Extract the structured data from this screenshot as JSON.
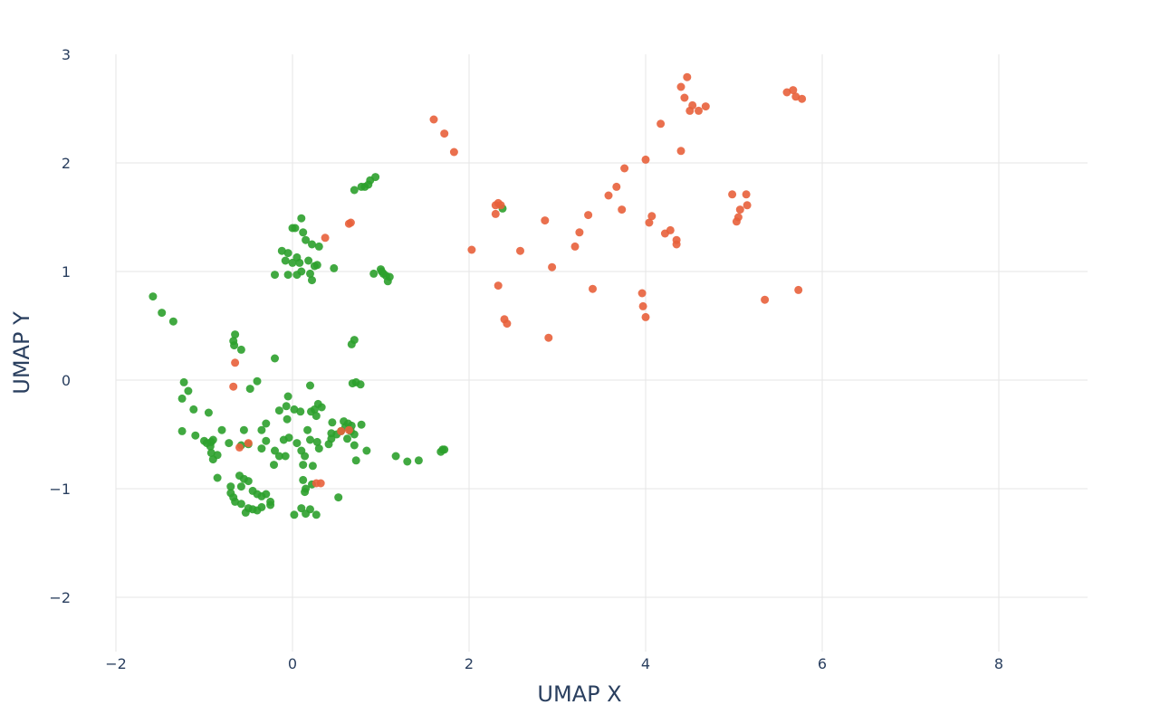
{
  "chart_data": {
    "type": "scatter",
    "title": "",
    "xlabel": "UMAP X",
    "ylabel": "UMAP Y",
    "xlim": [
      -2.4,
      9.0
    ],
    "ylim": [
      -2.5,
      3.0
    ],
    "x_ticks": [
      -2,
      0,
      2,
      4,
      6,
      8
    ],
    "y_ticks": [
      -2,
      -1,
      0,
      1,
      2,
      3
    ],
    "x_tick_labels": [
      "−2",
      "0",
      "2",
      "4",
      "6",
      "8"
    ],
    "y_tick_labels": [
      "−2",
      "−1",
      "0",
      "1",
      "2",
      "3"
    ],
    "grid": true,
    "legend": "none",
    "series": [
      {
        "color": "#2ca02c",
        "points": [
          [
            -1.58,
            0.77
          ],
          [
            -1.48,
            0.62
          ],
          [
            -1.35,
            0.54
          ],
          [
            -0.65,
            0.42
          ],
          [
            -0.67,
            0.36
          ],
          [
            -0.66,
            0.32
          ],
          [
            -0.58,
            0.28
          ],
          [
            -0.2,
            0.2
          ],
          [
            0.7,
            0.37
          ],
          [
            0.67,
            0.33
          ],
          [
            -1.23,
            -0.02
          ],
          [
            -1.25,
            -0.17
          ],
          [
            -1.18,
            -0.1
          ],
          [
            -1.12,
            -0.27
          ],
          [
            -0.95,
            -0.3
          ],
          [
            -0.4,
            -0.01
          ],
          [
            -0.48,
            -0.08
          ],
          [
            0.68,
            -0.03
          ],
          [
            0.72,
            -0.02
          ],
          [
            0.77,
            -0.04
          ],
          [
            0.2,
            -0.05
          ],
          [
            -0.05,
            -0.15
          ],
          [
            -0.07,
            -0.24
          ],
          [
            0.02,
            -0.27
          ],
          [
            0.09,
            -0.29
          ],
          [
            0.21,
            -0.29
          ],
          [
            0.25,
            -0.27
          ],
          [
            0.27,
            -0.33
          ],
          [
            0.29,
            -0.22
          ],
          [
            0.33,
            -0.25
          ],
          [
            -0.15,
            -0.28
          ],
          [
            -0.3,
            -0.4
          ],
          [
            -0.06,
            -0.36
          ],
          [
            -1.25,
            -0.47
          ],
          [
            -1.1,
            -0.51
          ],
          [
            -0.8,
            -0.46
          ],
          [
            -0.55,
            -0.46
          ],
          [
            -0.35,
            -0.46
          ],
          [
            0.17,
            -0.46
          ],
          [
            0.45,
            -0.39
          ],
          [
            0.58,
            -0.38
          ],
          [
            0.63,
            -0.4
          ],
          [
            0.67,
            -0.42
          ],
          [
            0.78,
            -0.41
          ],
          [
            0.44,
            -0.49
          ],
          [
            0.5,
            -0.5
          ],
          [
            0.55,
            -0.47
          ],
          [
            0.6,
            -0.43
          ],
          [
            0.66,
            -0.47
          ],
          [
            0.7,
            -0.5
          ],
          [
            0.44,
            -0.54
          ],
          [
            0.41,
            -0.59
          ],
          [
            0.62,
            -0.54
          ],
          [
            0.7,
            -0.6
          ],
          [
            0.84,
            -0.65
          ],
          [
            0.72,
            -0.74
          ],
          [
            -1.0,
            -0.56
          ],
          [
            -0.97,
            -0.58
          ],
          [
            -0.92,
            -0.57
          ],
          [
            -0.9,
            -0.55
          ],
          [
            -0.93,
            -0.61
          ],
          [
            -0.72,
            -0.58
          ],
          [
            -0.3,
            -0.56
          ],
          [
            -0.5,
            -0.59
          ],
          [
            -0.58,
            -0.6
          ],
          [
            -0.35,
            -0.63
          ],
          [
            -0.1,
            -0.55
          ],
          [
            0.05,
            -0.58
          ],
          [
            0.2,
            -0.55
          ],
          [
            0.28,
            -0.57
          ],
          [
            -0.04,
            -0.53
          ],
          [
            -0.92,
            -0.67
          ],
          [
            -0.9,
            -0.73
          ],
          [
            -0.85,
            -0.69
          ],
          [
            -0.2,
            -0.65
          ],
          [
            -0.15,
            -0.7
          ],
          [
            -0.08,
            -0.7
          ],
          [
            -0.21,
            -0.78
          ],
          [
            0.1,
            -0.65
          ],
          [
            0.14,
            -0.7
          ],
          [
            0.23,
            -0.79
          ],
          [
            0.3,
            -0.63
          ],
          [
            0.12,
            -0.78
          ],
          [
            1.17,
            -0.7
          ],
          [
            1.3,
            -0.75
          ],
          [
            1.43,
            -0.74
          ],
          [
            1.68,
            -0.66
          ],
          [
            1.7,
            -0.64
          ],
          [
            1.72,
            -0.64
          ],
          [
            -0.85,
            -0.9
          ],
          [
            -0.7,
            -0.98
          ],
          [
            -0.6,
            -0.88
          ],
          [
            -0.55,
            -0.91
          ],
          [
            -0.5,
            -0.93
          ],
          [
            -0.58,
            -0.98
          ],
          [
            -0.7,
            -1.04
          ],
          [
            -0.67,
            -1.08
          ],
          [
            -0.65,
            -1.12
          ],
          [
            -0.45,
            -1.02
          ],
          [
            -0.4,
            -1.05
          ],
          [
            -0.35,
            -1.07
          ],
          [
            -0.3,
            -1.05
          ],
          [
            -0.25,
            -1.12
          ],
          [
            0.12,
            -0.92
          ],
          [
            0.15,
            -1.0
          ],
          [
            0.14,
            -1.03
          ],
          [
            0.22,
            -0.96
          ],
          [
            0.52,
            -1.08
          ],
          [
            -0.58,
            -1.14
          ],
          [
            -0.5,
            -1.18
          ],
          [
            -0.45,
            -1.19
          ],
          [
            -0.4,
            -1.2
          ],
          [
            -0.35,
            -1.17
          ],
          [
            -0.25,
            -1.15
          ],
          [
            -0.53,
            -1.22
          ],
          [
            0.02,
            -1.24
          ],
          [
            0.1,
            -1.18
          ],
          [
            0.15,
            -1.23
          ],
          [
            0.2,
            -1.19
          ],
          [
            0.27,
            -1.24
          ],
          [
            -0.2,
            0.97
          ],
          [
            -0.05,
            0.97
          ],
          [
            0.05,
            0.97
          ],
          [
            0.1,
            1.0
          ],
          [
            0.2,
            0.98
          ],
          [
            0.22,
            0.92
          ],
          [
            0.47,
            1.03
          ],
          [
            -0.08,
            1.1
          ],
          [
            0.0,
            1.08
          ],
          [
            0.08,
            1.08
          ],
          [
            0.18,
            1.1
          ],
          [
            0.25,
            1.05
          ],
          [
            0.28,
            1.06
          ],
          [
            -0.12,
            1.19
          ],
          [
            -0.05,
            1.17
          ],
          [
            0.05,
            1.13
          ],
          [
            0.15,
            1.29
          ],
          [
            0.22,
            1.25
          ],
          [
            0.3,
            1.23
          ],
          [
            0.12,
            1.36
          ],
          [
            0.0,
            1.4
          ],
          [
            0.03,
            1.4
          ],
          [
            0.1,
            1.49
          ],
          [
            0.92,
            0.98
          ],
          [
            1.0,
            1.02
          ],
          [
            1.03,
            0.98
          ],
          [
            1.06,
            0.96
          ],
          [
            1.1,
            0.95
          ],
          [
            1.08,
            0.91
          ],
          [
            1.01,
            1.0
          ],
          [
            0.7,
            1.75
          ],
          [
            0.78,
            1.78
          ],
          [
            0.82,
            1.78
          ],
          [
            0.86,
            1.8
          ],
          [
            0.88,
            1.84
          ],
          [
            0.94,
            1.87
          ],
          [
            2.38,
            1.58
          ]
        ]
      },
      {
        "color": "#e8603b",
        "points": [
          [
            1.6,
            2.4
          ],
          [
            1.72,
            2.27
          ],
          [
            1.83,
            2.1
          ],
          [
            -0.65,
            0.16
          ],
          [
            -0.67,
            -0.06
          ],
          [
            -0.6,
            -0.62
          ],
          [
            -0.5,
            -0.58
          ],
          [
            0.27,
            -0.95
          ],
          [
            0.32,
            -0.95
          ],
          [
            0.55,
            -0.47
          ],
          [
            0.64,
            -0.46
          ],
          [
            0.37,
            1.31
          ],
          [
            0.64,
            1.44
          ],
          [
            0.66,
            1.45
          ],
          [
            2.03,
            1.2
          ],
          [
            2.3,
            1.53
          ],
          [
            2.3,
            1.61
          ],
          [
            2.33,
            1.63
          ],
          [
            2.36,
            1.61
          ],
          [
            2.33,
            0.87
          ],
          [
            2.4,
            0.56
          ],
          [
            2.43,
            0.52
          ],
          [
            2.58,
            1.19
          ],
          [
            2.86,
            1.47
          ],
          [
            2.9,
            0.39
          ],
          [
            2.94,
            1.04
          ],
          [
            3.2,
            1.23
          ],
          [
            3.25,
            1.36
          ],
          [
            3.35,
            1.52
          ],
          [
            3.4,
            0.84
          ],
          [
            3.58,
            1.7
          ],
          [
            3.67,
            1.78
          ],
          [
            3.73,
            1.57
          ],
          [
            3.76,
            1.95
          ],
          [
            3.96,
            0.8
          ],
          [
            3.97,
            0.68
          ],
          [
            4.0,
            0.58
          ],
          [
            4.0,
            2.03
          ],
          [
            4.04,
            1.45
          ],
          [
            4.07,
            1.51
          ],
          [
            4.17,
            2.36
          ],
          [
            4.22,
            1.35
          ],
          [
            4.28,
            1.38
          ],
          [
            4.35,
            1.25
          ],
          [
            4.35,
            1.29
          ],
          [
            4.4,
            2.11
          ],
          [
            4.4,
            2.7
          ],
          [
            4.44,
            2.6
          ],
          [
            4.47,
            2.79
          ],
          [
            4.5,
            2.48
          ],
          [
            4.53,
            2.53
          ],
          [
            4.6,
            2.48
          ],
          [
            4.68,
            2.52
          ],
          [
            4.98,
            1.71
          ],
          [
            5.03,
            1.46
          ],
          [
            5.05,
            1.5
          ],
          [
            5.07,
            1.57
          ],
          [
            5.14,
            1.71
          ],
          [
            5.15,
            1.61
          ],
          [
            5.35,
            0.74
          ],
          [
            5.6,
            2.65
          ],
          [
            5.67,
            2.67
          ],
          [
            5.7,
            2.61
          ],
          [
            5.73,
            0.83
          ],
          [
            5.77,
            2.59
          ]
        ]
      }
    ]
  }
}
